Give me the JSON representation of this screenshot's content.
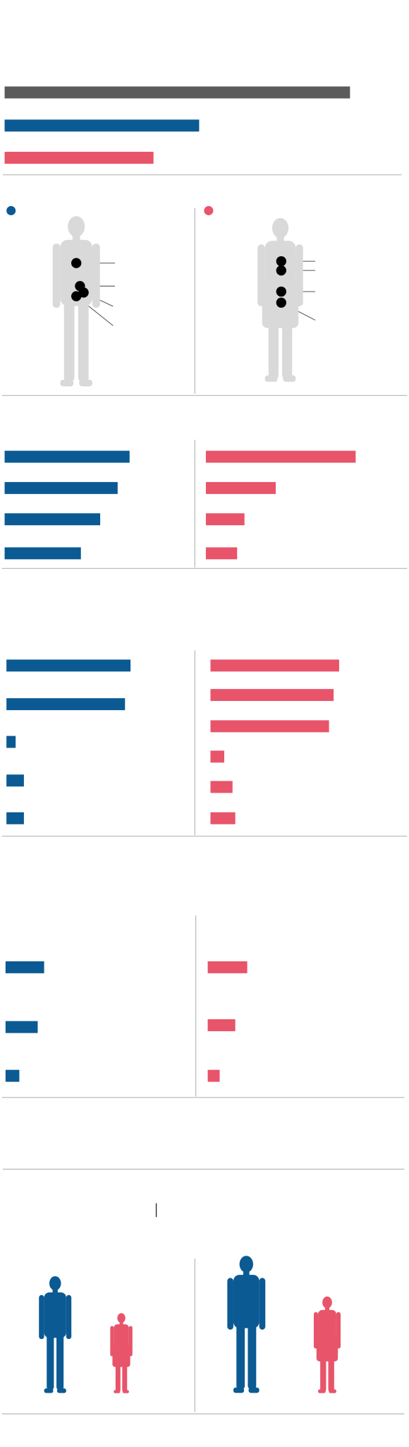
{
  "colors": {
    "total": "#5b5b5b",
    "male": "#0b5a93",
    "female": "#e8546a"
  },
  "overview": {
    "values": [
      87,
      49,
      37.5
    ]
  },
  "sections": [
    {
      "left": [
        68,
        61.5,
        52,
        41.5
      ],
      "right": [
        81.5,
        38,
        21,
        17
      ]
    },
    {
      "left": [
        67.5,
        64.5,
        5,
        9.5,
        9.5
      ],
      "right": [
        70,
        67,
        64.5,
        7.5,
        12,
        13.5
      ]
    },
    {
      "left": [
        21,
        17.5,
        7.5
      ],
      "right": [
        21.5,
        15,
        6.5
      ]
    }
  ]
}
